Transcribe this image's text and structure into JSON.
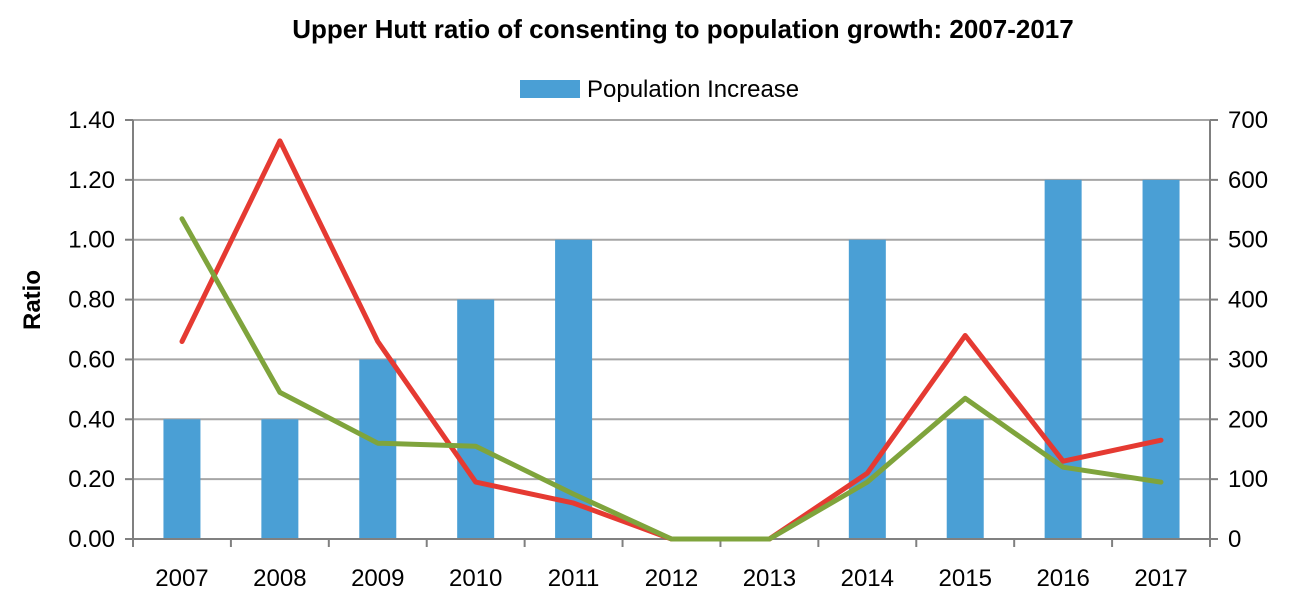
{
  "chart_data": {
    "type": "bar",
    "title": "Upper Hutt ratio of consenting to population growth: 2007-2017",
    "categories": [
      "2007",
      "2008",
      "2009",
      "2010",
      "2011",
      "2012",
      "2013",
      "2014",
      "2015",
      "2016",
      "2017"
    ],
    "ylabel": "Ratio",
    "ylabel_right": "",
    "ylim": [
      0,
      1.4
    ],
    "ylim_right": [
      0,
      700
    ],
    "y_ticks": [
      "0.00",
      "0.20",
      "0.40",
      "0.60",
      "0.80",
      "1.00",
      "1.20",
      "1.40"
    ],
    "y_ticks_right": [
      "0",
      "100",
      "200",
      "300",
      "400",
      "500",
      "600",
      "700"
    ],
    "grid": true,
    "legend_position": "top",
    "series": [
      {
        "name": "Population Increase",
        "type": "bar",
        "axis": "right",
        "color": "#4a9fd5",
        "values": [
          200,
          200,
          300,
          400,
          500,
          0,
          0,
          500,
          200,
          600,
          600
        ]
      },
      {
        "type": "line",
        "axis": "left",
        "color": "#e53a32",
        "values": [
          0.66,
          1.33,
          0.66,
          0.19,
          0.12,
          0.0,
          0.0,
          0.22,
          0.68,
          0.26,
          0.33
        ]
      },
      {
        "type": "line",
        "axis": "left",
        "color": "#7fa43c",
        "values": [
          1.07,
          0.49,
          0.32,
          0.31,
          0.15,
          0.0,
          0.0,
          0.19,
          0.47,
          0.24,
          0.19
        ]
      }
    ]
  }
}
